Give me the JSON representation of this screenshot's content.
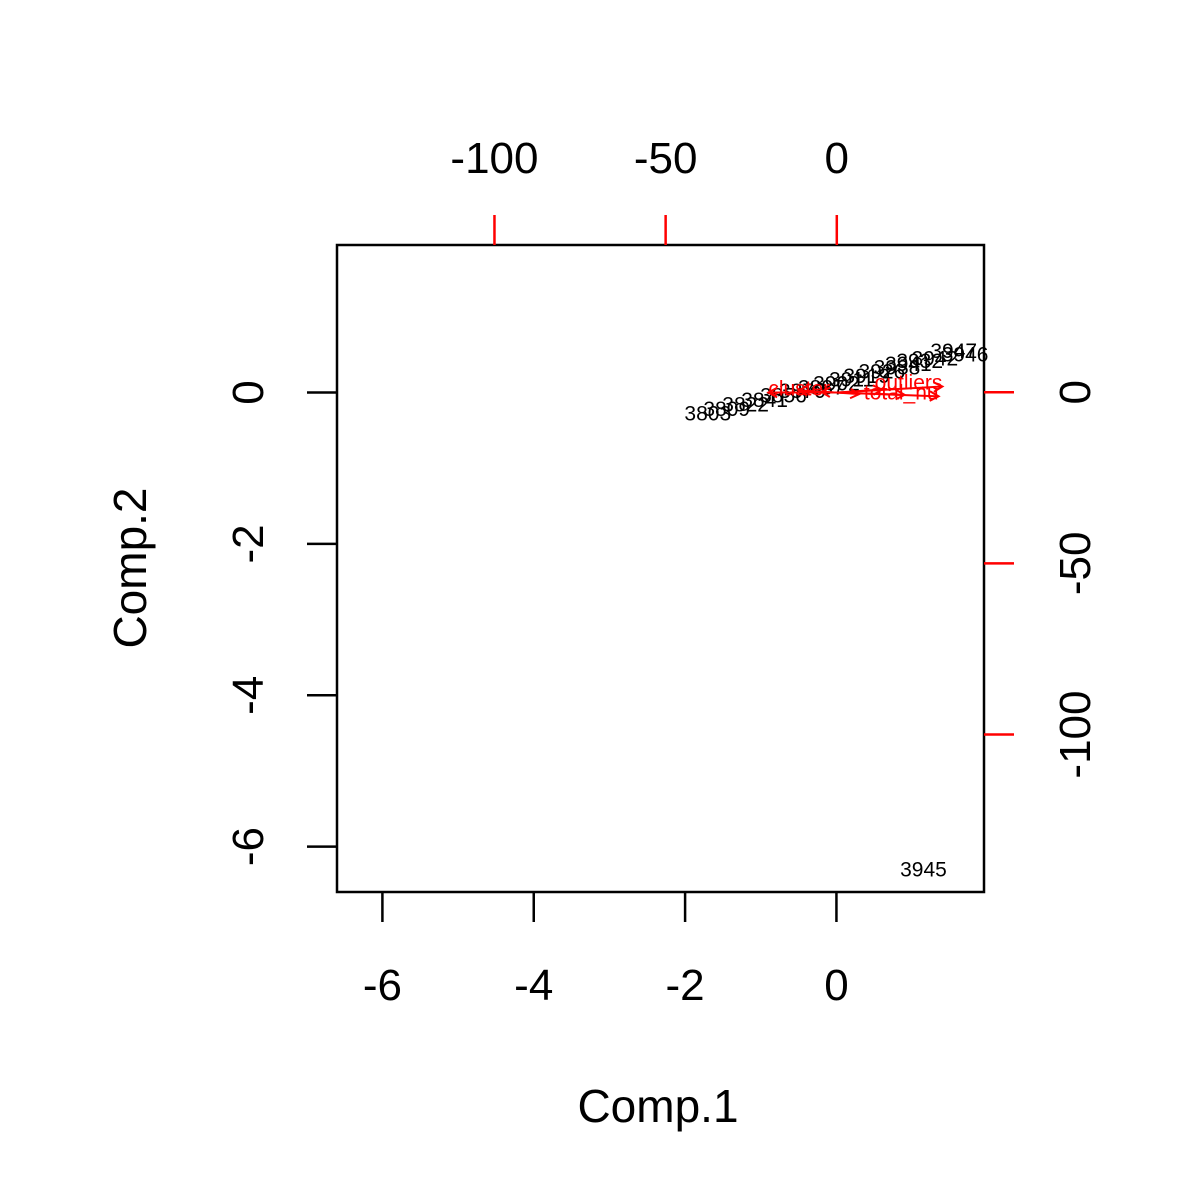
{
  "chart_data": {
    "type": "scatter",
    "title": "",
    "xlabel": "Comp.1",
    "ylabel": "Comp.2",
    "xlim": [
      -6.6,
      1.95
    ],
    "ylim": [
      -6.6,
      1.95
    ],
    "x_ticks": [
      -6,
      -4,
      -2,
      0
    ],
    "y_ticks": [
      -6,
      -4,
      -2,
      0
    ],
    "x_tick_labels": [
      "-6",
      "-4",
      "-2",
      "0"
    ],
    "y_tick_labels": [
      "-6",
      "-4",
      "-2",
      "0"
    ],
    "secondary_x_ticks": [
      -100,
      -50,
      0
    ],
    "secondary_y_ticks": [
      -100,
      -50,
      0
    ],
    "secondary_x_tick_labels": [
      "-100",
      "-50",
      "0"
    ],
    "secondary_y_tick_labels": [
      "-100",
      "-50",
      "0"
    ],
    "secondary_range": [
      -146,
      43
    ],
    "grid": false,
    "observations": [
      {
        "x": 1.55,
        "y": 0.55,
        "label": "3947"
      },
      {
        "x": 1.7,
        "y": 0.5,
        "label": "3946"
      },
      {
        "x": 1.3,
        "y": 0.45,
        "label": "3942"
      },
      {
        "x": 1.1,
        "y": 0.42,
        "label": "3932"
      },
      {
        "x": 0.95,
        "y": 0.38,
        "label": "3941"
      },
      {
        "x": 0.8,
        "y": 0.33,
        "label": "3938"
      },
      {
        "x": 0.6,
        "y": 0.28,
        "label": "3926"
      },
      {
        "x": 0.4,
        "y": 0.22,
        "label": "3919"
      },
      {
        "x": 0.2,
        "y": 0.17,
        "label": "3911"
      },
      {
        "x": 0.0,
        "y": 0.12,
        "label": "3902"
      },
      {
        "x": -0.2,
        "y": 0.07,
        "label": "3887"
      },
      {
        "x": -0.45,
        "y": 0.02,
        "label": "3870"
      },
      {
        "x": -0.7,
        "y": -0.04,
        "label": "3856"
      },
      {
        "x": -0.95,
        "y": -0.1,
        "label": "3841"
      },
      {
        "x": -1.2,
        "y": -0.16,
        "label": "3822"
      },
      {
        "x": -1.45,
        "y": -0.22,
        "label": "3809"
      },
      {
        "x": -1.7,
        "y": -0.28,
        "label": "3803"
      }
    ],
    "corner_observation": {
      "x": 1.15,
      "y": -6.3,
      "label": "3945"
    },
    "loadings": [
      {
        "x": 1.4,
        "y": 0.08,
        "label": "outliers"
      },
      {
        "x": 1.35,
        "y": -0.05,
        "label": "total_nu"
      },
      {
        "x": -0.9,
        "y": 0.0,
        "label": "cluster"
      },
      {
        "x": -0.5,
        "y": 0.03,
        "label": ""
      },
      {
        "x": -0.2,
        "y": 0.01,
        "label": ""
      },
      {
        "x": 0.3,
        "y": -0.02,
        "label": ""
      },
      {
        "x": 0.6,
        "y": 0.04,
        "label": ""
      },
      {
        "x": 0.9,
        "y": -0.03,
        "label": ""
      }
    ]
  },
  "colors": {
    "observations": "#000000",
    "loadings": "#ff0000",
    "axes": "#000000"
  }
}
